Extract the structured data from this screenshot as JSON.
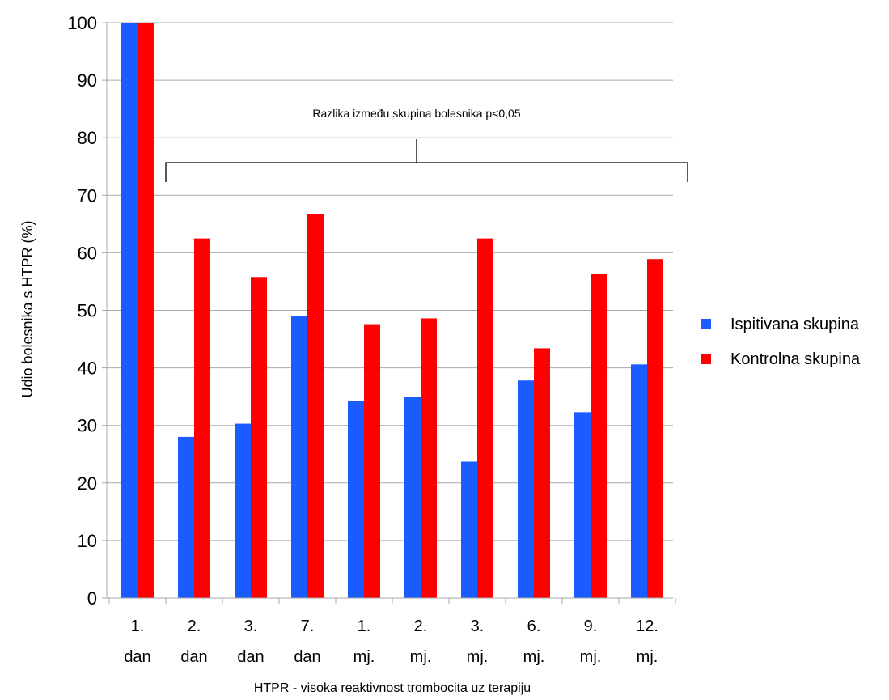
{
  "chart_data": {
    "type": "bar",
    "title": "",
    "ylabel": "Udio bolesnika s HTPR (%)",
    "xlabel": "HTPR - visoka reaktivnost trombocita uz terapiju",
    "ylim": [
      0,
      100
    ],
    "yticks": [
      "0",
      "10",
      "20",
      "30",
      "40",
      "50",
      "60",
      "70",
      "80",
      "90",
      "100"
    ],
    "grid": "horizontal",
    "legend_position": "right",
    "categories": [
      {
        "line1": "1.",
        "line2": "dan"
      },
      {
        "line1": "2.",
        "line2": "dan"
      },
      {
        "line1": "3.",
        "line2": "dan"
      },
      {
        "line1": "7.",
        "line2": "dan"
      },
      {
        "line1": "1.",
        "line2": "mj."
      },
      {
        "line1": "2.",
        "line2": "mj."
      },
      {
        "line1": "3.",
        "line2": "mj."
      },
      {
        "line1": "6.",
        "line2": "mj."
      },
      {
        "line1": "9.",
        "line2": "mj."
      },
      {
        "line1": "12.",
        "line2": "mj."
      }
    ],
    "series": [
      {
        "name": "Ispitivana skupina",
        "color": "#1a5cff",
        "values": [
          100,
          28,
          30.3,
          49,
          34.2,
          35,
          23.7,
          37.8,
          32.3,
          40.6
        ]
      },
      {
        "name": "Kontrolna skupina",
        "color": "#ff0000",
        "values": [
          100,
          62.5,
          55.8,
          66.7,
          47.6,
          48.6,
          62.5,
          43.4,
          56.3,
          58.9
        ]
      }
    ],
    "annotation": {
      "text": "Razlika između skupina bolesnika p<0,05",
      "from_category": 1,
      "to_category": 9
    }
  }
}
